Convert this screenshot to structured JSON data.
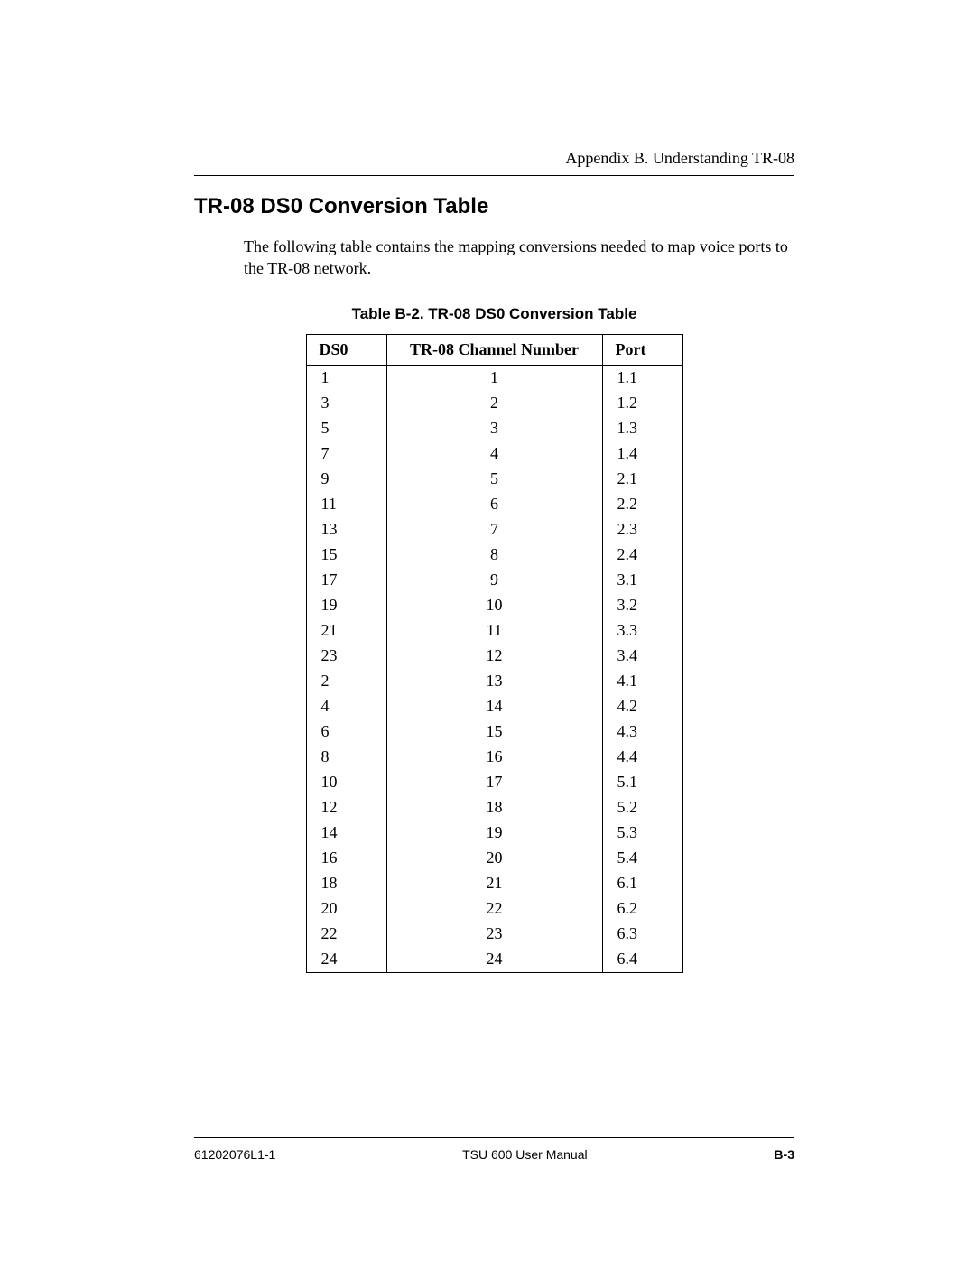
{
  "header": {
    "appendix_line": "Appendix B.  Understanding TR-08"
  },
  "section": {
    "title": "TR-08 DS0 Conversion Table",
    "intro": "The following table contains the mapping conversions needed to map voice ports to the TR-08 network."
  },
  "table": {
    "caption": "Table B-2.  TR-08 DS0 Conversion Table",
    "columns": [
      "DS0",
      "TR-08 Channel Number",
      "Port"
    ],
    "rows": [
      [
        "1",
        "1",
        "1.1"
      ],
      [
        "3",
        "2",
        "1.2"
      ],
      [
        "5",
        "3",
        "1.3"
      ],
      [
        "7",
        "4",
        "1.4"
      ],
      [
        "9",
        "5",
        "2.1"
      ],
      [
        "11",
        "6",
        "2.2"
      ],
      [
        "13",
        "7",
        "2.3"
      ],
      [
        "15",
        "8",
        "2.4"
      ],
      [
        "17",
        "9",
        "3.1"
      ],
      [
        "19",
        "10",
        "3.2"
      ],
      [
        "21",
        "11",
        "3.3"
      ],
      [
        "23",
        "12",
        "3.4"
      ],
      [
        "2",
        "13",
        "4.1"
      ],
      [
        "4",
        "14",
        "4.2"
      ],
      [
        "6",
        "15",
        "4.3"
      ],
      [
        "8",
        "16",
        "4.4"
      ],
      [
        "10",
        "17",
        "5.1"
      ],
      [
        "12",
        "18",
        "5.2"
      ],
      [
        "14",
        "19",
        "5.3"
      ],
      [
        "16",
        "20",
        "5.4"
      ],
      [
        "18",
        "21",
        "6.1"
      ],
      [
        "20",
        "22",
        "6.2"
      ],
      [
        "22",
        "23",
        "6.3"
      ],
      [
        "24",
        "24",
        "6.4"
      ]
    ]
  },
  "footer": {
    "left": "61202076L1-1",
    "center": "TSU 600 User Manual",
    "right": "B-3"
  },
  "style": {
    "page_bg": "#ffffff",
    "text_color": "#000000",
    "rule_color": "#000000",
    "title_fontsize": 24,
    "body_fontsize": 18,
    "caption_fontsize": 17,
    "footer_fontsize": 14
  }
}
